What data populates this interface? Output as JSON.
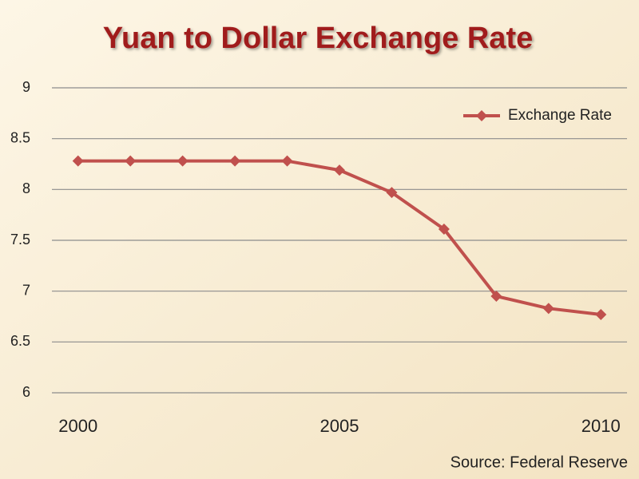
{
  "chart_data": {
    "type": "line",
    "title": "Yuan to Dollar Exchange Rate",
    "x": [
      2000,
      2001,
      2002,
      2003,
      2004,
      2005,
      2006,
      2007,
      2008,
      2009,
      2010
    ],
    "series": [
      {
        "name": "Exchange Rate",
        "color": "#c0504d",
        "values": [
          8.28,
          8.28,
          8.28,
          8.28,
          8.28,
          8.19,
          7.97,
          7.61,
          6.95,
          6.83,
          6.77
        ]
      }
    ],
    "xlim": [
      1999.5,
      2010.5
    ],
    "xticks": [
      2000,
      2005,
      2010
    ],
    "ylim": [
      6,
      9
    ],
    "yticks": [
      6,
      6.5,
      7,
      7.5,
      8,
      8.5,
      9
    ],
    "grid": true,
    "legend": "top-right",
    "source": "Source: Federal Reserve"
  }
}
